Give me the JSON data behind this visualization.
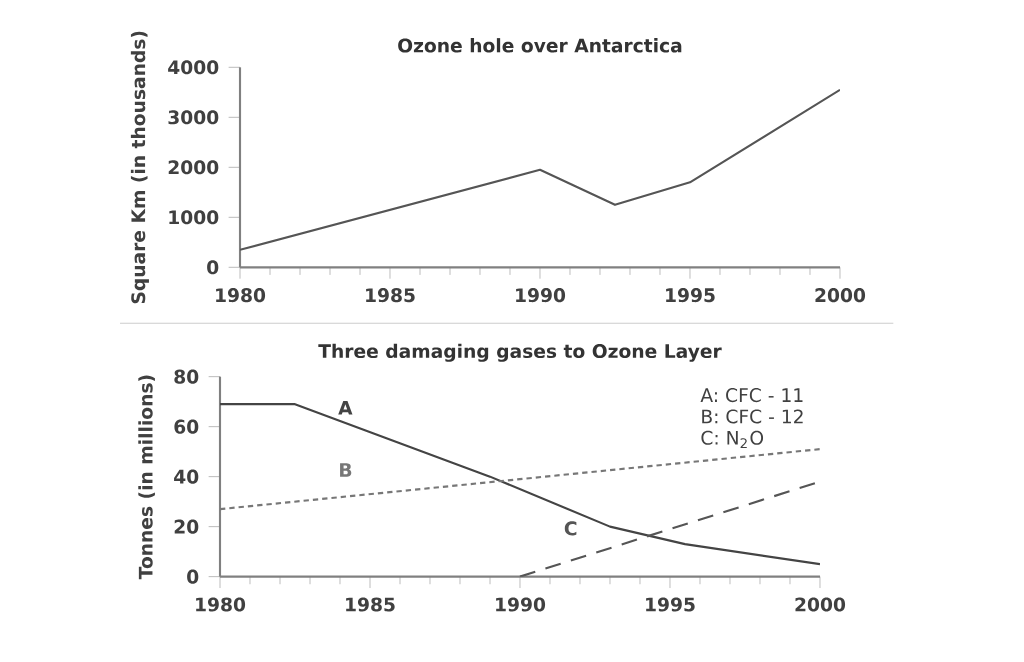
{
  "chart_data": [
    {
      "type": "line",
      "title": "Ozone hole over Antarctica",
      "ylabel": "Square Km (in thousands)",
      "xlim": [
        1980,
        2000
      ],
      "xticks": [
        1980,
        1985,
        1990,
        1995,
        2000
      ],
      "ylim": [
        0,
        4000
      ],
      "yticks": [
        0,
        1000,
        2000,
        3000,
        4000
      ],
      "grid": false,
      "line_style": "solid",
      "series": [
        {
          "color": "#555555",
          "x": [
            1980,
            1990,
            1992.5,
            1995,
            2000
          ],
          "values": [
            350,
            1950,
            1250,
            1700,
            3550
          ]
        }
      ]
    },
    {
      "type": "line",
      "title": "Three damaging gases to Ozone Layer",
      "ylabel": "Tonnes (in millions)",
      "xlim": [
        1980,
        2000
      ],
      "xticks": [
        1980,
        1985,
        1990,
        1995,
        2000
      ],
      "ylim": [
        0,
        80
      ],
      "yticks": [
        0,
        20,
        40,
        60,
        80
      ],
      "grid": false,
      "annotations": [
        "A: CFC - 11",
        "B: CFC - 12",
        "C: N$_{2}$O"
      ],
      "series": [
        {
          "name": "A",
          "color": "#444444",
          "line_style": "solid",
          "x": [
            1980,
            1982.5,
            1989,
            1993,
            1995.5,
            2000
          ],
          "values": [
            69,
            69,
            40,
            20,
            13,
            5
          ]
        },
        {
          "name": "B",
          "color": "#777777",
          "line_style": "dotted",
          "x": [
            1980,
            2000
          ],
          "values": [
            27,
            51
          ]
        },
        {
          "name": "C",
          "color": "#555555",
          "line_style": "dashed",
          "x": [
            1990,
            2000
          ],
          "values": [
            0,
            38
          ]
        }
      ]
    }
  ]
}
